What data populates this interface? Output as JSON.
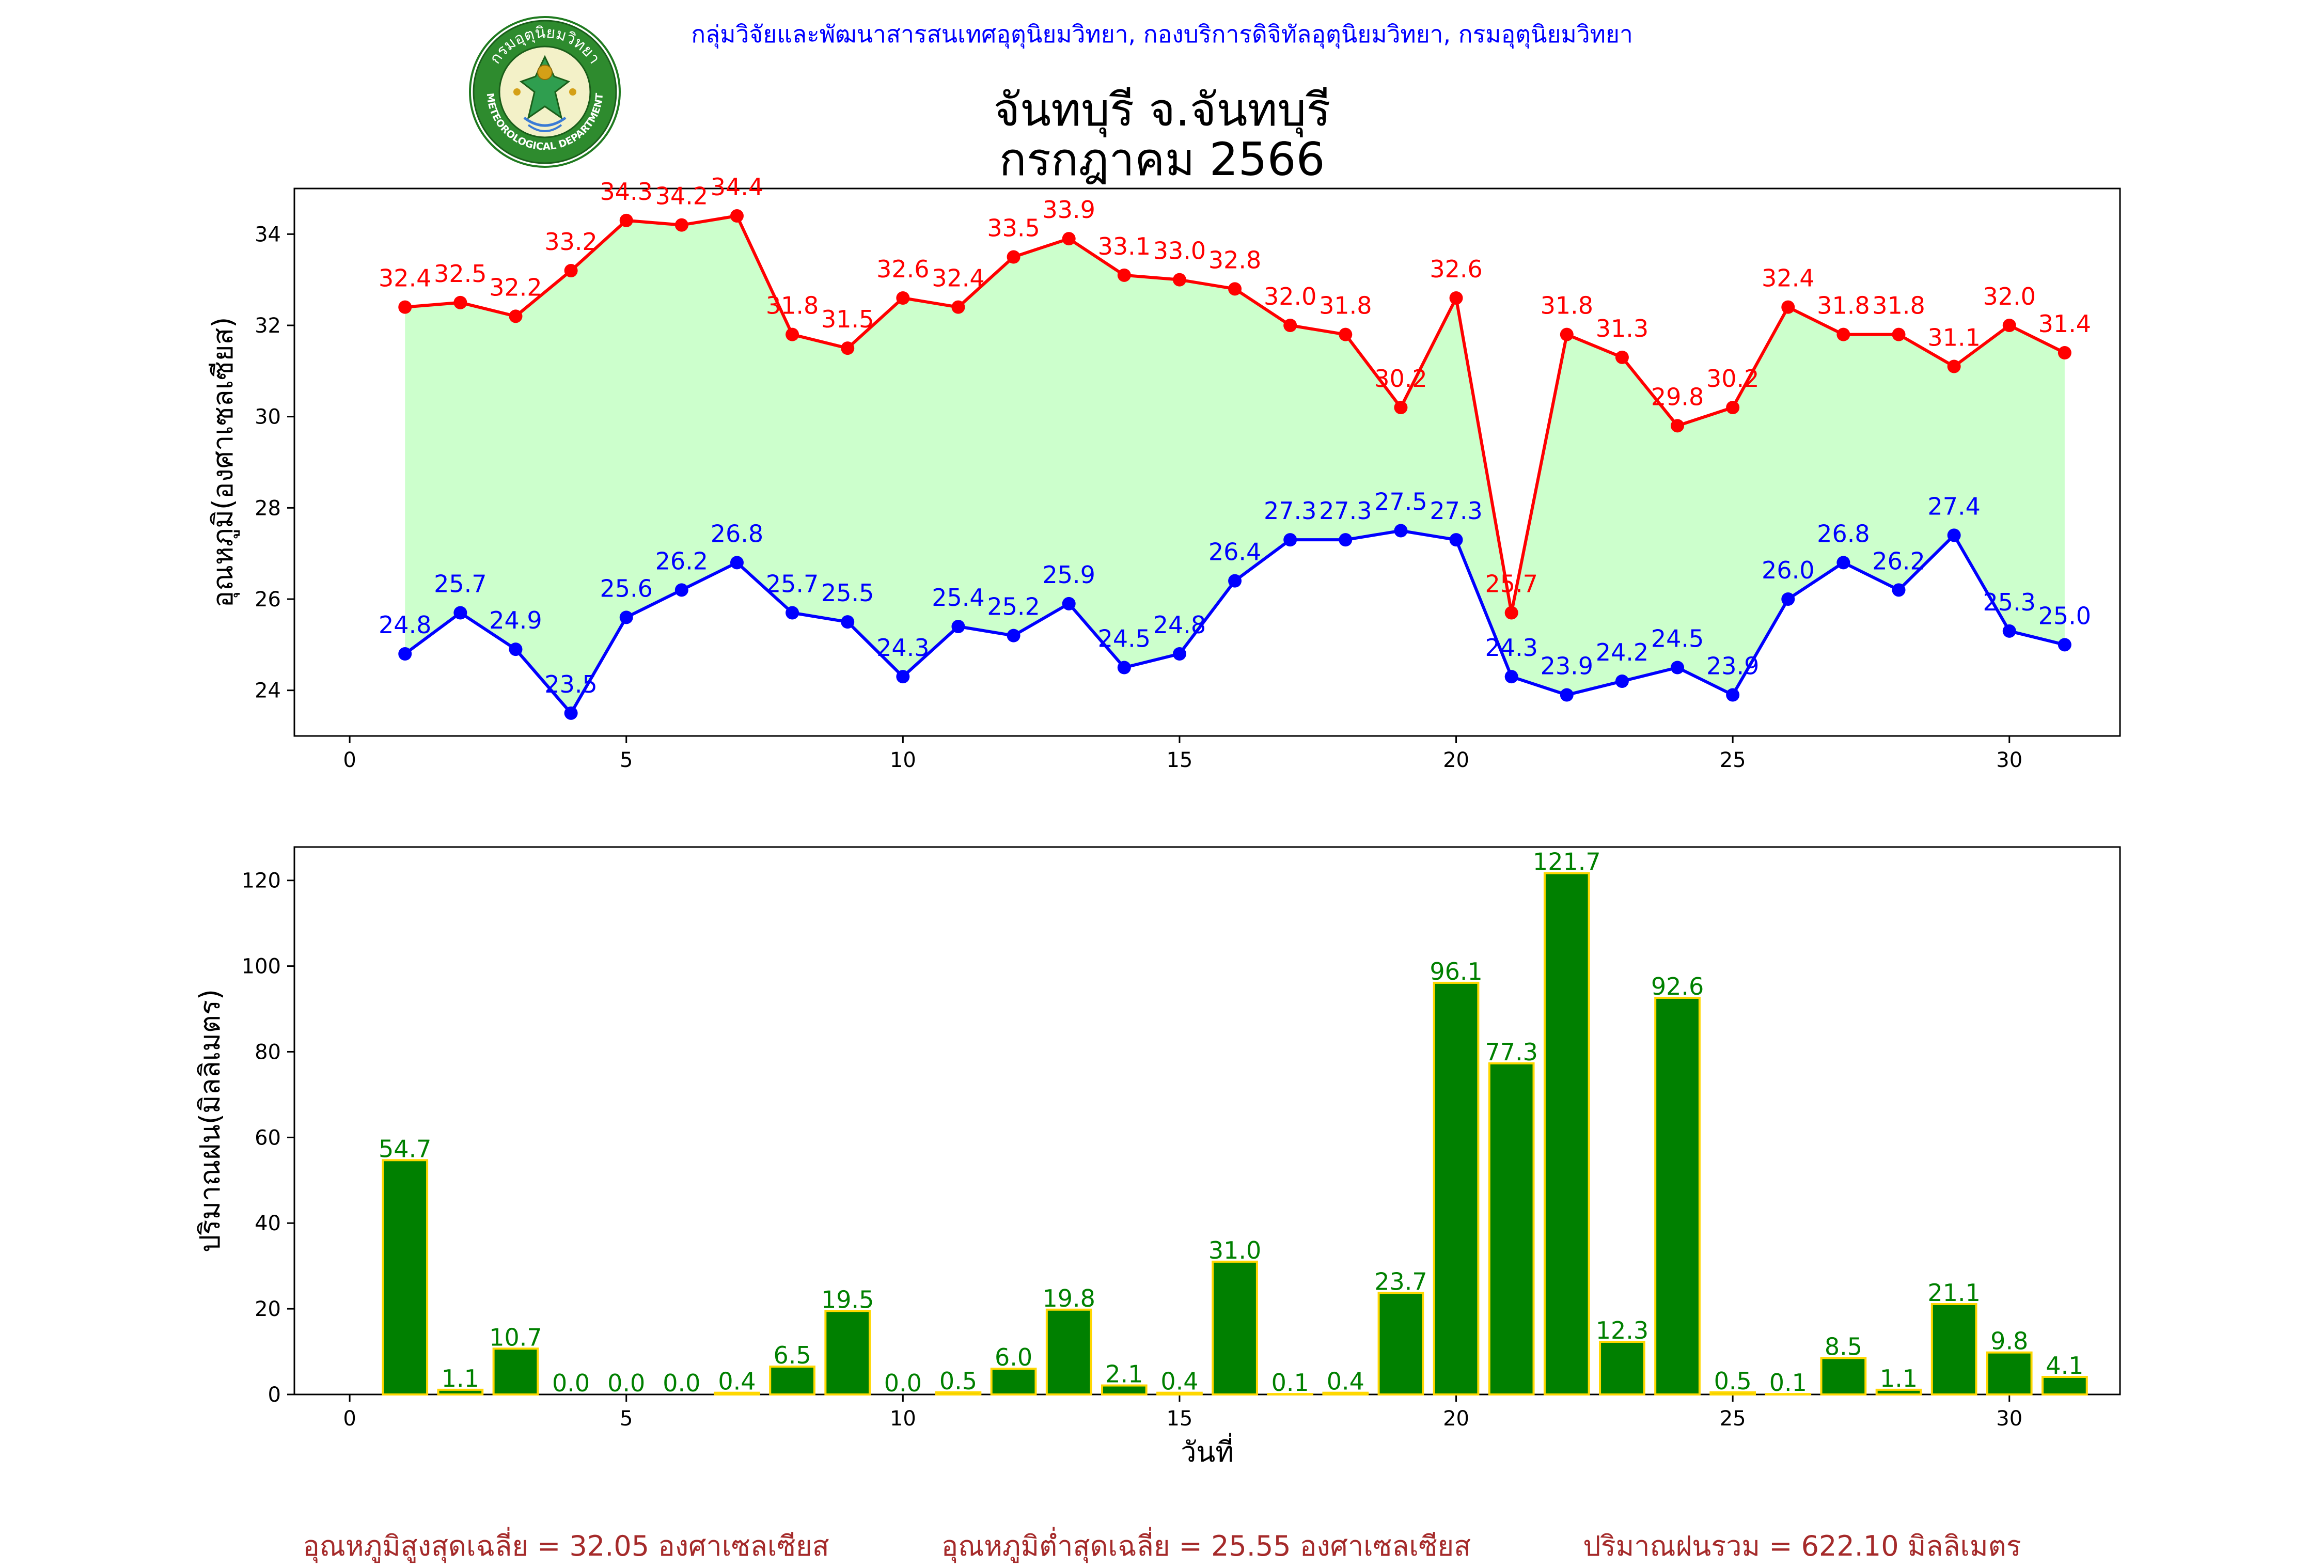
{
  "header": {
    "org_line": "กลุ่มวิจัยและพัฒนาสารสนเทศอุตุนิยมวิทยา, กองบริการดิจิทัลอุตุนิยมวิทยา, กรมอุตุนิยมวิทยา",
    "title": "จันทบุรี จ.จันทบุรี",
    "subtitle": "กรกฎาคม 2566",
    "logo_text_top": "กรมอุตุนิยมวิทยา",
    "logo_text_bottom": "METEOROLOGICAL DEPARTMENT"
  },
  "footer": {
    "avg_max": "อุณหภูมิสูงสุดเฉลี่ย = 32.05 องศาเซลเซียส",
    "avg_min": "อุณหภูมิต่ำสุดเฉลี่ย = 25.55 องศาเซลเซียส",
    "total_rain": "ปริมาณฝนรวม = 622.10 มิลลิเมตร"
  },
  "colors": {
    "max_line": "#ff0000",
    "min_line": "#0000ff",
    "fill": "#ccffcc",
    "bar_fill": "#008000",
    "bar_edge": "#ffd700",
    "bar_label": "#008000",
    "footer_text": "#a52a2a",
    "org_text": "#0000ff"
  },
  "chart_data": [
    {
      "type": "line",
      "ylabel": "อุณหภูมิ(องศาเซลเซียส)",
      "xlabel": "",
      "xlim": [
        -1,
        32
      ],
      "ylim": [
        23,
        35
      ],
      "xticks": [
        0,
        5,
        10,
        15,
        20,
        25,
        30
      ],
      "yticks": [
        24,
        26,
        28,
        30,
        32,
        34
      ],
      "grid": false,
      "x": [
        1,
        2,
        3,
        4,
        5,
        6,
        7,
        8,
        9,
        10,
        11,
        12,
        13,
        14,
        15,
        16,
        17,
        18,
        19,
        20,
        21,
        22,
        23,
        24,
        25,
        26,
        27,
        28,
        29,
        30,
        31
      ],
      "series": [
        {
          "key": "max",
          "values": [
            32.4,
            32.5,
            32.2,
            33.2,
            34.3,
            34.2,
            34.4,
            31.8,
            31.5,
            32.6,
            32.4,
            33.5,
            33.9,
            33.1,
            33.0,
            32.8,
            32.0,
            31.8,
            30.2,
            32.6,
            25.7,
            31.8,
            31.3,
            29.8,
            30.2,
            32.4,
            31.8,
            31.8,
            31.1,
            32.0,
            31.4
          ]
        },
        {
          "key": "min",
          "values": [
            24.8,
            25.7,
            24.9,
            23.5,
            25.6,
            26.2,
            26.8,
            25.7,
            25.5,
            24.3,
            25.4,
            25.2,
            25.9,
            24.5,
            24.8,
            26.4,
            27.3,
            27.3,
            27.5,
            27.3,
            24.3,
            23.9,
            24.2,
            24.5,
            23.9,
            26.0,
            26.8,
            26.2,
            27.4,
            25.3,
            25.0
          ]
        }
      ]
    },
    {
      "type": "bar",
      "ylabel": "ปริมาณฝน(มิลลิเมตร)",
      "xlabel": "วันที่",
      "xlim": [
        -1,
        32
      ],
      "ylim": [
        0,
        127.8
      ],
      "xticks": [
        0,
        5,
        10,
        15,
        20,
        25,
        30
      ],
      "yticks": [
        0,
        20,
        40,
        60,
        80,
        100,
        120
      ],
      "grid": false,
      "x": [
        1,
        2,
        3,
        4,
        5,
        6,
        7,
        8,
        9,
        10,
        11,
        12,
        13,
        14,
        15,
        16,
        17,
        18,
        19,
        20,
        21,
        22,
        23,
        24,
        25,
        26,
        27,
        28,
        29,
        30,
        31
      ],
      "values": [
        54.7,
        1.1,
        10.7,
        0.0,
        0.0,
        0.0,
        0.4,
        6.5,
        19.5,
        0.0,
        0.5,
        6.0,
        19.8,
        2.1,
        0.4,
        31.0,
        0.1,
        0.4,
        23.7,
        96.1,
        77.3,
        121.7,
        12.3,
        92.6,
        0.5,
        0.1,
        8.5,
        1.1,
        21.1,
        9.8,
        4.1
      ]
    }
  ]
}
